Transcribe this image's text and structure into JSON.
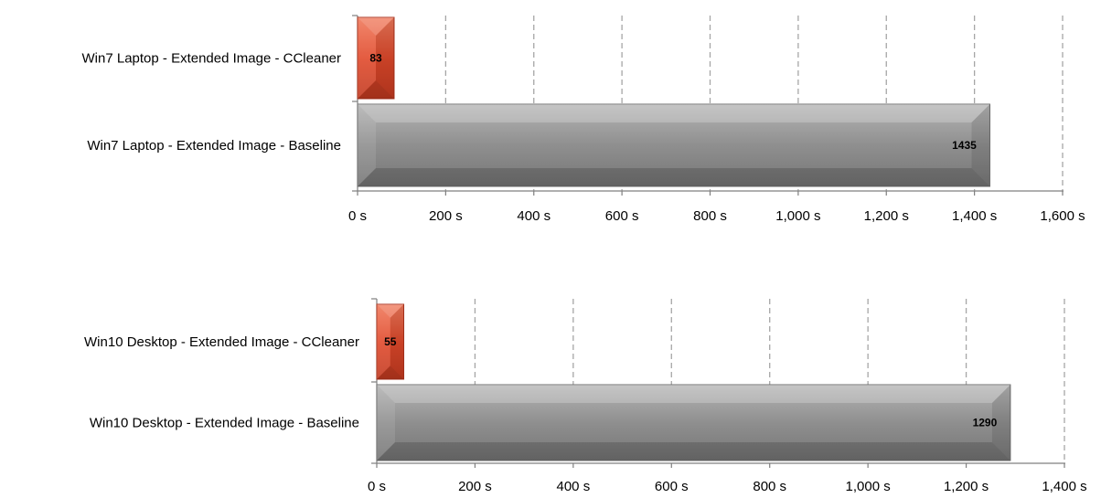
{
  "chart_data": [
    {
      "type": "bar",
      "orientation": "horizontal",
      "categories": [
        "Win7 Laptop - Extended Image - CCleaner",
        "Win7 Laptop - Extended Image - Baseline"
      ],
      "values": [
        83,
        1435
      ],
      "data_labels": [
        "83",
        "1435"
      ],
      "bar_colors": [
        "#e8452a",
        "#8e8e8e"
      ],
      "xlim": [
        0,
        1600
      ],
      "xticks": [
        0,
        200,
        400,
        600,
        800,
        1000,
        1200,
        1400,
        1600
      ],
      "xtick_labels": [
        "0 s",
        "200 s",
        "400 s",
        "600 s",
        "800 s",
        "1,000 s",
        "1,200 s",
        "1,400 s",
        "1,600 s"
      ],
      "grid": "vertical dashed",
      "legend": "none"
    },
    {
      "type": "bar",
      "orientation": "horizontal",
      "categories": [
        "Win10 Desktop - Extended Image - CCleaner",
        "Win10 Desktop - Extended Image - Baseline"
      ],
      "values": [
        55,
        1290
      ],
      "data_labels": [
        "55",
        "1290"
      ],
      "bar_colors": [
        "#e8452a",
        "#8e8e8e"
      ],
      "xlim": [
        0,
        1400
      ],
      "xticks": [
        0,
        200,
        400,
        600,
        800,
        1000,
        1200,
        1400
      ],
      "xtick_labels": [
        "0 s",
        "200 s",
        "400 s",
        "600 s",
        "800 s",
        "1,000 s",
        "1,200 s",
        "1,400 s"
      ],
      "grid": "vertical dashed",
      "legend": "none"
    }
  ]
}
